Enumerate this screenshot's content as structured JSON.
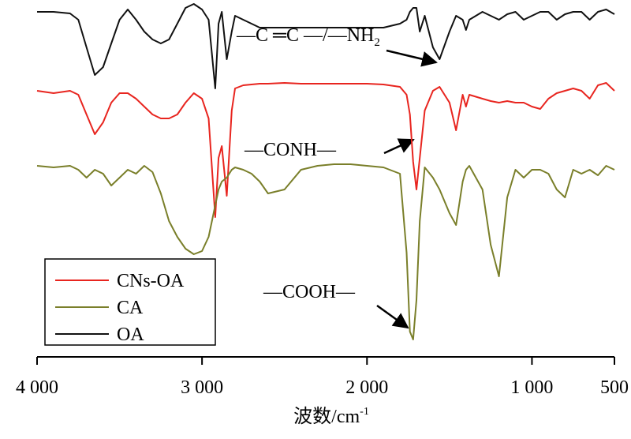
{
  "chart_data": {
    "type": "line",
    "xlabel": "波数/cm",
    "xlabel_sup": "-1",
    "xlim": [
      4000,
      500
    ],
    "ylim": [
      0,
      460
    ],
    "xticks": [
      {
        "value": 4000,
        "label": "4 000"
      },
      {
        "value": 3000,
        "label": "3 000"
      },
      {
        "value": 2000,
        "label": "2 000"
      },
      {
        "value": 1000,
        "label": "1 000"
      },
      500
    ],
    "x": [
      4000,
      3900,
      3800,
      3750,
      3700,
      3650,
      3600,
      3550,
      3500,
      3450,
      3400,
      3350,
      3300,
      3250,
      3200,
      3150,
      3100,
      3050,
      3000,
      2960,
      2920,
      2900,
      2880,
      2850,
      2820,
      2800,
      2750,
      2700,
      2650,
      2600,
      2500,
      2400,
      2300,
      2200,
      2100,
      2000,
      1900,
      1800,
      1760,
      1740,
      1720,
      1700,
      1680,
      1650,
      1600,
      1560,
      1500,
      1460,
      1420,
      1400,
      1380,
      1300,
      1250,
      1200,
      1150,
      1100,
      1050,
      1000,
      950,
      900,
      850,
      800,
      750,
      700,
      650,
      600,
      550,
      500
    ],
    "series": [
      {
        "name": "CNs-OA",
        "color": "#e8251f",
        "values": [
          345,
          342,
          345,
          340,
          315,
          290,
          305,
          330,
          342,
          342,
          335,
          325,
          315,
          310,
          310,
          315,
          330,
          342,
          335,
          310,
          185,
          260,
          275,
          212,
          320,
          348,
          352,
          353,
          354,
          354,
          355,
          354,
          354,
          354,
          354,
          354,
          353,
          350,
          340,
          315,
          255,
          220,
          260,
          320,
          345,
          350,
          330,
          295,
          340,
          325,
          340,
          335,
          332,
          330,
          332,
          330,
          330,
          325,
          322,
          335,
          342,
          345,
          348,
          345,
          335,
          352,
          355,
          345
        ]
      },
      {
        "name": "CA",
        "color": "#7a7f2a",
        "values": [
          250,
          248,
          250,
          245,
          235,
          245,
          240,
          225,
          235,
          245,
          240,
          250,
          242,
          215,
          180,
          160,
          145,
          138,
          142,
          160,
          200,
          220,
          230,
          235,
          245,
          248,
          245,
          240,
          230,
          215,
          220,
          245,
          250,
          252,
          252,
          250,
          248,
          240,
          140,
          40,
          30,
          80,
          180,
          248,
          235,
          220,
          190,
          175,
          230,
          245,
          250,
          220,
          150,
          110,
          210,
          245,
          235,
          245,
          245,
          240,
          220,
          210,
          245,
          240,
          245,
          238,
          250,
          245
        ]
      },
      {
        "name": "OA",
        "color": "#111111",
        "values": [
          445,
          445,
          443,
          435,
          400,
          365,
          375,
          405,
          435,
          448,
          435,
          420,
          410,
          405,
          410,
          430,
          450,
          455,
          448,
          435,
          348,
          430,
          445,
          385,
          420,
          440,
          435,
          430,
          425,
          425,
          425,
          425,
          425,
          425,
          425,
          425,
          425,
          430,
          435,
          445,
          450,
          450,
          420,
          440,
          400,
          385,
          420,
          440,
          435,
          422,
          435,
          445,
          440,
          435,
          442,
          445,
          435,
          440,
          445,
          445,
          435,
          442,
          445,
          445,
          435,
          445,
          448,
          442
        ]
      }
    ],
    "annotations": [
      {
        "text": "—C ═C —/—NH",
        "sub": "2"
      },
      {
        "text": "—CONH—"
      },
      {
        "text": "—COOH—"
      }
    ]
  }
}
